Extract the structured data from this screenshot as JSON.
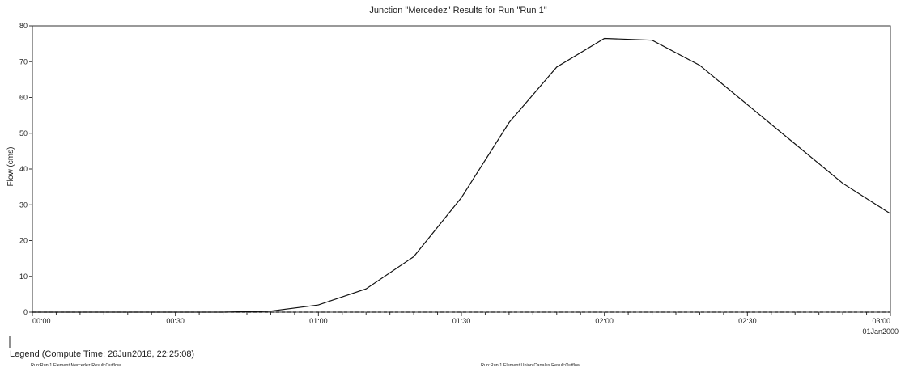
{
  "chart_data": {
    "type": "line",
    "title": "Junction \"Mercedez\" Results for Run \"Run 1\"",
    "xlabel": "",
    "ylabel": "Flow (cms)",
    "x_tick_labels": [
      "00:00",
      "00:30",
      "01:00",
      "01:30",
      "02:00",
      "02:30",
      "03:00"
    ],
    "x_tick_minutes": [
      0,
      30,
      60,
      90,
      120,
      150,
      180
    ],
    "x_date_label": "01Jan2000",
    "xlim_minutes": [
      0,
      180
    ],
    "ylim": [
      0,
      80
    ],
    "y_ticks": [
      0,
      10,
      20,
      30,
      40,
      50,
      60,
      70,
      80
    ],
    "grid": false,
    "series": [
      {
        "name": "Run:Run 1 Element:Mercedez Result:Outflow",
        "style": "solid",
        "color": "#111111",
        "x_minutes": [
          0,
          10,
          20,
          30,
          40,
          50,
          60,
          70,
          80,
          90,
          100,
          110,
          120,
          130,
          140,
          150,
          160,
          170,
          180
        ],
        "values": [
          0,
          0,
          0,
          0,
          0,
          0.3,
          2,
          6.5,
          15.5,
          32,
          53,
          68.5,
          76.5,
          76,
          69,
          58,
          47,
          36,
          27.5
        ]
      },
      {
        "name": "Run:Run 1 Element:Union Canales Result:Outflow",
        "style": "dashed",
        "color": "#111111",
        "x_minutes": [
          0,
          30,
          60,
          90,
          120,
          150,
          180
        ],
        "values": [
          0,
          0,
          0,
          0,
          0,
          0,
          0
        ]
      }
    ]
  },
  "legend": {
    "title": "Legend (Compute Time: 26Jun2018, 22:25:08)"
  }
}
